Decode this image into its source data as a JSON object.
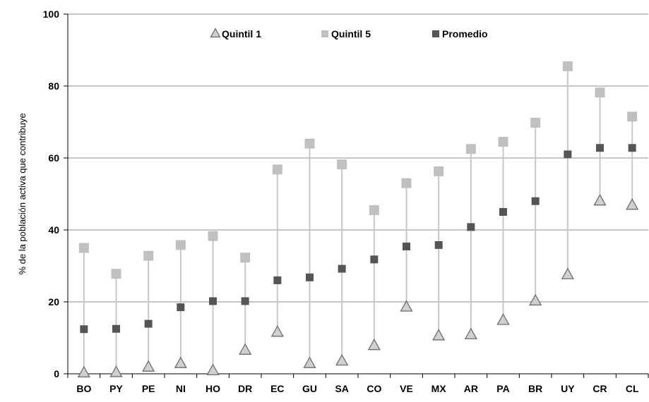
{
  "chart_data": {
    "type": "scatter",
    "ylabel": "% de la población activa que contribuye",
    "ylim": [
      0,
      100
    ],
    "yticks": [
      0,
      20,
      40,
      60,
      80,
      100
    ],
    "grid": "horizontal",
    "legend_position": "top",
    "categories": [
      "BO",
      "PY",
      "PE",
      "NI",
      "HO",
      "DR",
      "EC",
      "GU",
      "SA",
      "CO",
      "VE",
      "MX",
      "AR",
      "PA",
      "BR",
      "UY",
      "CR",
      "CL"
    ],
    "series": [
      {
        "name": "Quintil 1",
        "marker": "triangle",
        "color": "#c8c8c8",
        "values": [
          0.2,
          0.3,
          1.8,
          2.8,
          0.8,
          6.5,
          11.5,
          2.8,
          3.5,
          7.8,
          18.5,
          10.5,
          10.8,
          14.8,
          20.2,
          27.5,
          48.0,
          46.8
        ]
      },
      {
        "name": "Quintil 5",
        "marker": "square",
        "color": "#c0c0c0",
        "values": [
          35.0,
          27.8,
          32.8,
          35.8,
          38.3,
          32.3,
          56.8,
          64.0,
          58.2,
          45.5,
          53.0,
          56.3,
          62.5,
          64.5,
          69.8,
          85.5,
          78.2,
          71.5
        ]
      },
      {
        "name": "Promedio",
        "marker": "square",
        "color": "#555555",
        "values": [
          12.4,
          12.5,
          13.9,
          18.5,
          20.2,
          20.2,
          26.0,
          26.8,
          29.2,
          31.8,
          35.4,
          35.8,
          40.8,
          45.0,
          48.0,
          61.0,
          62.8,
          62.8
        ]
      }
    ]
  }
}
